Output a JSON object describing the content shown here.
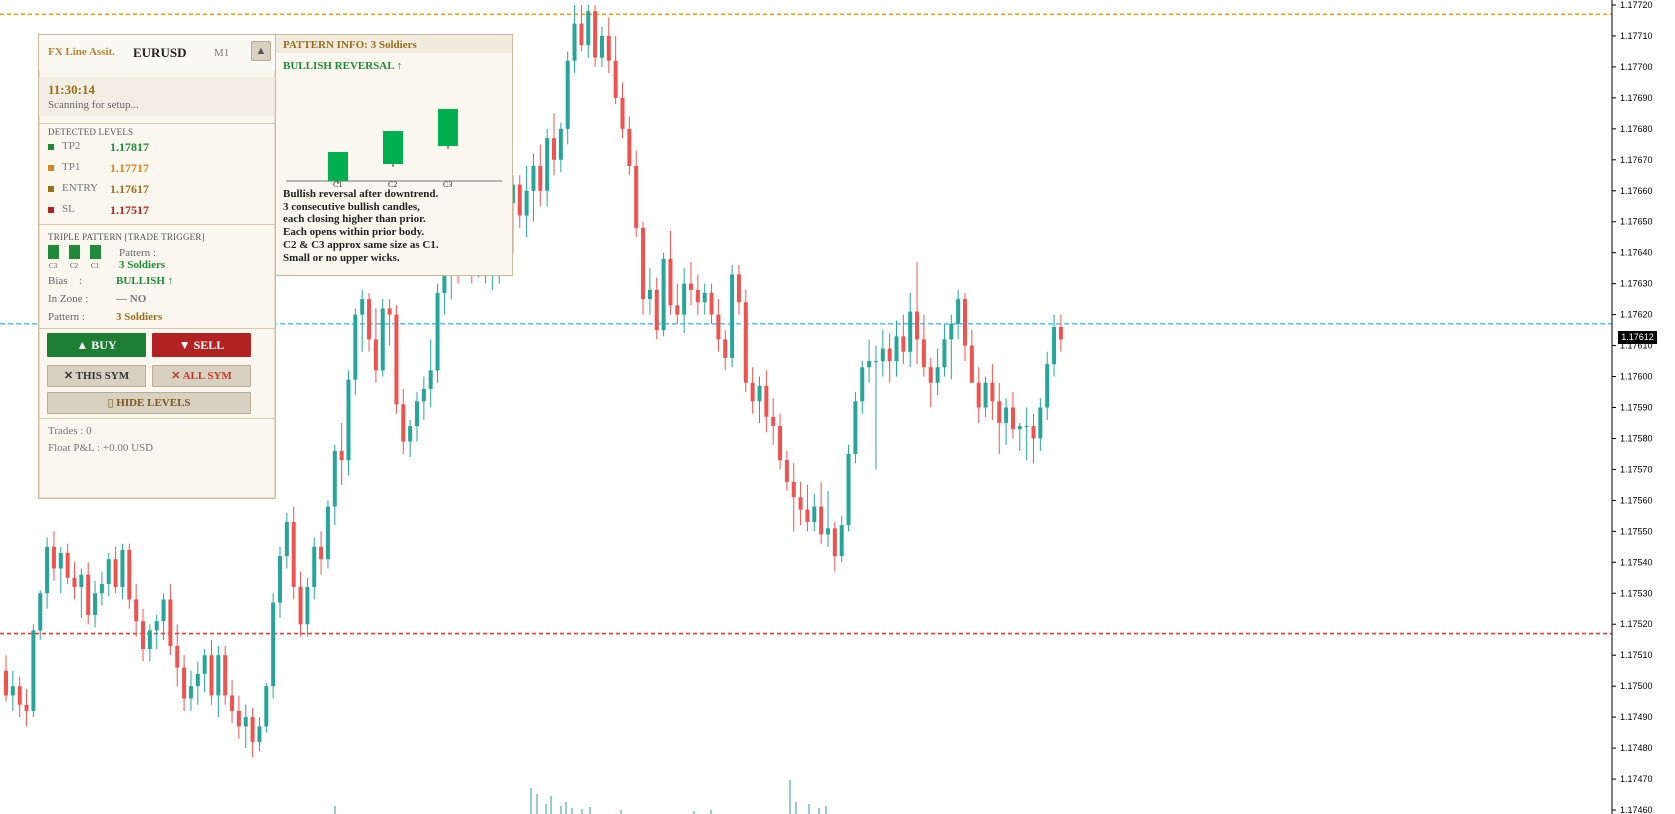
{
  "colors": {
    "bull": "#26a69a",
    "bear": "#ef5350",
    "tp_line": "#f39c12",
    "entry_line": "#29b6f6",
    "sl_line": "#e53935",
    "brand": "#b7842c",
    "green": "#1f8a3a",
    "red": "#b22222"
  },
  "chart_data": {
    "type": "candlestick",
    "symbol": "EURUSD",
    "timeframe": "M1",
    "ylim": [
      1.17455,
      1.17722
    ],
    "y_ticks": [
      "1.17720",
      "1.17710",
      "1.17700",
      "1.17690",
      "1.17680",
      "1.17670",
      "1.17660",
      "1.17650",
      "1.17640",
      "1.17630",
      "1.17620",
      "1.17610",
      "1.17600",
      "1.17590",
      "1.17580",
      "1.17570",
      "1.17560",
      "1.17550",
      "1.17540",
      "1.17530",
      "1.17520",
      "1.17510",
      "1.17500",
      "1.17490",
      "1.17480",
      "1.17470",
      "1.17460"
    ],
    "current_price": "1.17612",
    "levels": [
      {
        "name": "TP",
        "value": 1.17717
      },
      {
        "name": "ENTRY",
        "value": 1.17617
      },
      {
        "name": "SL",
        "value": 1.17517
      }
    ],
    "candles": [
      [
        1.17505,
        1.1751,
        1.17495,
        1.17497
      ],
      [
        1.17497,
        1.17505,
        1.17492,
        1.175
      ],
      [
        1.175,
        1.17503,
        1.1749,
        1.17494
      ],
      [
        1.17494,
        1.17499,
        1.17487,
        1.17492
      ],
      [
        1.17492,
        1.1752,
        1.1749,
        1.17518
      ],
      [
        1.17518,
        1.17531,
        1.17515,
        1.1753
      ],
      [
        1.1753,
        1.17548,
        1.17525,
        1.17545
      ],
      [
        1.17545,
        1.1755,
        1.17534,
        1.17538
      ],
      [
        1.17538,
        1.17545,
        1.1753,
        1.17543
      ],
      [
        1.17543,
        1.17546,
        1.17533,
        1.17535
      ],
      [
        1.17535,
        1.1754,
        1.17528,
        1.17532
      ],
      [
        1.17532,
        1.17538,
        1.17522,
        1.17536
      ],
      [
        1.17536,
        1.1754,
        1.1752,
        1.17523
      ],
      [
        1.17523,
        1.17534,
        1.17519,
        1.1753
      ],
      [
        1.1753,
        1.17537,
        1.17526,
        1.17533
      ],
      [
        1.17533,
        1.17543,
        1.17529,
        1.17541
      ],
      [
        1.17541,
        1.17545,
        1.1753,
        1.17532
      ],
      [
        1.17532,
        1.17546,
        1.17528,
        1.17544
      ],
      [
        1.17544,
        1.17546,
        1.17525,
        1.17528
      ],
      [
        1.17528,
        1.17533,
        1.17516,
        1.17521
      ],
      [
        1.17521,
        1.17525,
        1.17508,
        1.17512
      ],
      [
        1.17512,
        1.1752,
        1.17508,
        1.17518
      ],
      [
        1.17518,
        1.17523,
        1.17512,
        1.17521
      ],
      [
        1.17521,
        1.1753,
        1.17515,
        1.17528
      ],
      [
        1.17528,
        1.17533,
        1.1751,
        1.17513
      ],
      [
        1.17513,
        1.1752,
        1.175,
        1.17506
      ],
      [
        1.17506,
        1.1751,
        1.17492,
        1.17496
      ],
      [
        1.17496,
        1.17505,
        1.17492,
        1.175
      ],
      [
        1.175,
        1.17508,
        1.17494,
        1.17504
      ],
      [
        1.17504,
        1.17512,
        1.17498,
        1.1751
      ],
      [
        1.1751,
        1.17515,
        1.17494,
        1.17497
      ],
      [
        1.17497,
        1.17513,
        1.1749,
        1.1751
      ],
      [
        1.1751,
        1.17513,
        1.17494,
        1.17497
      ],
      [
        1.17497,
        1.17502,
        1.17488,
        1.17492
      ],
      [
        1.17492,
        1.17497,
        1.17483,
        1.17487
      ],
      [
        1.17487,
        1.17494,
        1.1748,
        1.1749
      ],
      [
        1.1749,
        1.17493,
        1.17477,
        1.17482
      ],
      [
        1.17482,
        1.1749,
        1.17479,
        1.17487
      ],
      [
        1.17487,
        1.17501,
        1.17485,
        1.175
      ],
      [
        1.175,
        1.1753,
        1.17496,
        1.17527
      ],
      [
        1.17527,
        1.17545,
        1.17522,
        1.17542
      ],
      [
        1.17542,
        1.17556,
        1.17538,
        1.17553
      ],
      [
        1.17553,
        1.17558,
        1.17528,
        1.17532
      ],
      [
        1.17532,
        1.17537,
        1.17516,
        1.1752
      ],
      [
        1.1752,
        1.17535,
        1.17516,
        1.17532
      ],
      [
        1.17532,
        1.17548,
        1.17528,
        1.17545
      ],
      [
        1.17545,
        1.1755,
        1.17536,
        1.17541
      ],
      [
        1.17541,
        1.1756,
        1.17538,
        1.17558
      ],
      [
        1.17558,
        1.17578,
        1.17552,
        1.17576
      ],
      [
        1.17576,
        1.17585,
        1.17565,
        1.17573
      ],
      [
        1.17573,
        1.17602,
        1.17568,
        1.17599
      ],
      [
        1.17599,
        1.17622,
        1.17594,
        1.1762
      ],
      [
        1.1762,
        1.17628,
        1.17608,
        1.17625
      ],
      [
        1.17625,
        1.17627,
        1.17608,
        1.17612
      ],
      [
        1.17612,
        1.17622,
        1.17598,
        1.17602
      ],
      [
        1.17602,
        1.17625,
        1.176,
        1.17622
      ],
      [
        1.17622,
        1.17625,
        1.1761,
        1.1762
      ],
      [
        1.1762,
        1.17623,
        1.17588,
        1.17591
      ],
      [
        1.17591,
        1.17596,
        1.17575,
        1.17579
      ],
      [
        1.17579,
        1.17586,
        1.17574,
        1.17584
      ],
      [
        1.17584,
        1.17595,
        1.17579,
        1.17592
      ],
      [
        1.17592,
        1.176,
        1.17586,
        1.17596
      ],
      [
        1.17596,
        1.17612,
        1.1759,
        1.17602
      ],
      [
        1.17602,
        1.1763,
        1.17598,
        1.17627
      ],
      [
        1.17627,
        1.1764,
        1.1762,
        1.17635
      ],
      [
        1.17635,
        1.1765,
        1.17625,
        1.17648
      ],
      [
        1.17648,
        1.17655,
        1.1763,
        1.1764
      ],
      [
        1.1764,
        1.1766,
        1.17635,
        1.17652
      ],
      [
        1.17652,
        1.17668,
        1.1763,
        1.1764
      ],
      [
        1.1764,
        1.17665,
        1.17632,
        1.17655
      ],
      [
        1.17655,
        1.1766,
        1.1763,
        1.17633
      ],
      [
        1.17633,
        1.17637,
        1.17628,
        1.17633
      ],
      [
        1.17633,
        1.1765,
        1.1763,
        1.17648
      ],
      [
        1.17648,
        1.1766,
        1.17645,
        1.17656
      ],
      [
        1.17656,
        1.17665,
        1.1764,
        1.17662
      ],
      [
        1.17662,
        1.17665,
        1.17648,
        1.17652
      ],
      [
        1.17652,
        1.17668,
        1.17645,
        1.1766
      ],
      [
        1.1766,
        1.17672,
        1.1765,
        1.17668
      ],
      [
        1.17668,
        1.17675,
        1.17655,
        1.1766
      ],
      [
        1.1766,
        1.1768,
        1.17655,
        1.17677
      ],
      [
        1.17677,
        1.17685,
        1.17665,
        1.1767
      ],
      [
        1.1767,
        1.17682,
        1.17666,
        1.1768
      ],
      [
        1.1768,
        1.17705,
        1.17675,
        1.17702
      ],
      [
        1.17702,
        1.1772,
        1.17698,
        1.17714
      ],
      [
        1.17714,
        1.1772,
        1.17705,
        1.17707
      ],
      [
        1.17707,
        1.1772,
        1.17703,
        1.17718
      ],
      [
        1.17718,
        1.1772,
        1.177,
        1.17703
      ],
      [
        1.17703,
        1.17713,
        1.177,
        1.1771
      ],
      [
        1.1771,
        1.17716,
        1.17698,
        1.17702
      ],
      [
        1.17702,
        1.1771,
        1.17688,
        1.1769
      ],
      [
        1.1769,
        1.17695,
        1.17677,
        1.1768
      ],
      [
        1.1768,
        1.17684,
        1.17665,
        1.17668
      ],
      [
        1.17668,
        1.17673,
        1.17645,
        1.17648
      ],
      [
        1.17648,
        1.1765,
        1.1762,
        1.17625
      ],
      [
        1.17625,
        1.17635,
        1.1762,
        1.17628
      ],
      [
        1.17628,
        1.17632,
        1.17612,
        1.17615
      ],
      [
        1.17615,
        1.1764,
        1.17613,
        1.17638
      ],
      [
        1.17638,
        1.17647,
        1.1762,
        1.17623
      ],
      [
        1.17623,
        1.1763,
        1.17617,
        1.1762
      ],
      [
        1.1762,
        1.17635,
        1.17614,
        1.1763
      ],
      [
        1.1763,
        1.17637,
        1.17623,
        1.17628
      ],
      [
        1.17628,
        1.17633,
        1.1762,
        1.17624
      ],
      [
        1.17624,
        1.1763,
        1.1762,
        1.17627
      ],
      [
        1.17627,
        1.1763,
        1.17617,
        1.1762
      ],
      [
        1.1762,
        1.17625,
        1.17608,
        1.17612
      ],
      [
        1.17612,
        1.17615,
        1.17602,
        1.17606
      ],
      [
        1.17606,
        1.17636,
        1.17603,
        1.17633
      ],
      [
        1.17633,
        1.17636,
        1.1762,
        1.17624
      ],
      [
        1.17624,
        1.17628,
        1.17595,
        1.17598
      ],
      [
        1.17598,
        1.17603,
        1.17588,
        1.17592
      ],
      [
        1.17592,
        1.176,
        1.17585,
        1.17597
      ],
      [
        1.17597,
        1.17602,
        1.17582,
        1.17587
      ],
      [
        1.17587,
        1.17593,
        1.17578,
        1.17584
      ],
      [
        1.17584,
        1.17588,
        1.1757,
        1.17573
      ],
      [
        1.17573,
        1.17576,
        1.17563,
        1.17566
      ],
      [
        1.17566,
        1.17572,
        1.1755,
        1.17561
      ],
      [
        1.17561,
        1.17566,
        1.17552,
        1.17557
      ],
      [
        1.17557,
        1.17565,
        1.1755,
        1.17553
      ],
      [
        1.17553,
        1.17562,
        1.1755,
        1.17558
      ],
      [
        1.17558,
        1.17566,
        1.17546,
        1.17549
      ],
      [
        1.17549,
        1.17563,
        1.17545,
        1.17551
      ],
      [
        1.17551,
        1.17553,
        1.17537,
        1.17542
      ],
      [
        1.17542,
        1.17555,
        1.1754,
        1.17552
      ],
      [
        1.17552,
        1.17578,
        1.1755,
        1.17575
      ],
      [
        1.17575,
        1.17595,
        1.17572,
        1.17592
      ],
      [
        1.17592,
        1.17605,
        1.17588,
        1.17603
      ],
      [
        1.17603,
        1.17612,
        1.17598,
        1.17605
      ],
      [
        1.17605,
        1.1761,
        1.1757,
        1.17605
      ],
      [
        1.17605,
        1.17615,
        1.176,
        1.17609
      ],
      [
        1.17609,
        1.17614,
        1.17598,
        1.17605
      ],
      [
        1.17605,
        1.17618,
        1.176,
        1.17613
      ],
      [
        1.17613,
        1.1762,
        1.17604,
        1.17608
      ],
      [
        1.17608,
        1.17627,
        1.17603,
        1.17621
      ],
      [
        1.17621,
        1.17637,
        1.17604,
        1.17612
      ],
      [
        1.17612,
        1.1762,
        1.176,
        1.17603
      ],
      [
        1.17603,
        1.17606,
        1.1759,
        1.17598
      ],
      [
        1.17598,
        1.17609,
        1.17594,
        1.17603
      ],
      [
        1.17603,
        1.17617,
        1.176,
        1.17612
      ],
      [
        1.17612,
        1.1762,
        1.17599,
        1.17617
      ],
      [
        1.17617,
        1.17628,
        1.17612,
        1.17625
      ],
      [
        1.17625,
        1.17627,
        1.17605,
        1.1761
      ],
      [
        1.1761,
        1.17615,
        1.17598,
        1.17598
      ],
      [
        1.17598,
        1.17603,
        1.17585,
        1.1759
      ],
      [
        1.1759,
        1.176,
        1.17587,
        1.17598
      ],
      [
        1.17598,
        1.17604,
        1.17586,
        1.17592
      ],
      [
        1.17592,
        1.17598,
        1.17575,
        1.17585
      ],
      [
        1.17585,
        1.17593,
        1.17578,
        1.1759
      ],
      [
        1.1759,
        1.17595,
        1.1758,
        1.17583
      ],
      [
        1.17583,
        1.17585,
        1.17576,
        1.17584
      ],
      [
        1.17584,
        1.1759,
        1.17573,
        1.17584
      ],
      [
        1.17584,
        1.17588,
        1.17572,
        1.1758
      ],
      [
        1.1758,
        1.17593,
        1.17576,
        1.1759
      ],
      [
        1.1759,
        1.17608,
        1.17586,
        1.17604
      ],
      [
        1.17604,
        1.1762,
        1.176,
        1.17616
      ],
      [
        1.17616,
        1.1762,
        1.17608,
        1.17612
      ]
    ]
  },
  "panel": {
    "brand": "FX Line Assit.",
    "symbol": "EURUSD",
    "timeframe": "M1",
    "collapse_icon": "▲",
    "time": "11:30:14",
    "status": "Scanning for setup...",
    "levels_header": "DETECTED  LEVELS",
    "levels": [
      {
        "name": "TP2",
        "value": "1.17817",
        "color": "#1f8a3a"
      },
      {
        "name": "TP1",
        "value": "1.17717",
        "color": "#d9831f"
      },
      {
        "name": "ENTRY",
        "value": "1.17617",
        "color": "#9c6e1c"
      },
      {
        "name": "SL",
        "value": "1.17517",
        "color": "#b22222"
      }
    ],
    "pattern_header": "TRIPLE PATTERN [TRADE TRIGGER]",
    "mini_labels": [
      "C3",
      "C2",
      "C1"
    ],
    "pattern_label": "Pattern :",
    "pattern_value": "3 Soldiers",
    "bias_label": "Bias",
    "bias_colon": ":",
    "bias_value": "BULLISH ↑",
    "zone_label": "In Zone :",
    "zone_value": "— NO",
    "pattern2_label": "Pattern :",
    "pattern2_value": "3 Soldiers",
    "buy": "▲  BUY",
    "sell": "▼  SELL",
    "close_sym": "✕ THIS SYM",
    "close_all": "✕ ALL SYM",
    "hide_levels": "▯  HIDE LEVELS",
    "trades": "Trades : 0",
    "float_pl": "Float P&L : +0.00 USD"
  },
  "info": {
    "title": "PATTERN INFO: 3 Soldiers",
    "subtitle": "BULLISH REVERSAL ↑",
    "candle_labels": [
      "C1",
      "C2",
      "C3"
    ],
    "description": [
      "Bullish reversal after downtrend.",
      "3 consecutive bullish candles,",
      "each closing higher than prior.",
      "Each opens within prior body.",
      "C2 & C3 approx same size as C1.",
      "Small or no upper wicks."
    ]
  }
}
